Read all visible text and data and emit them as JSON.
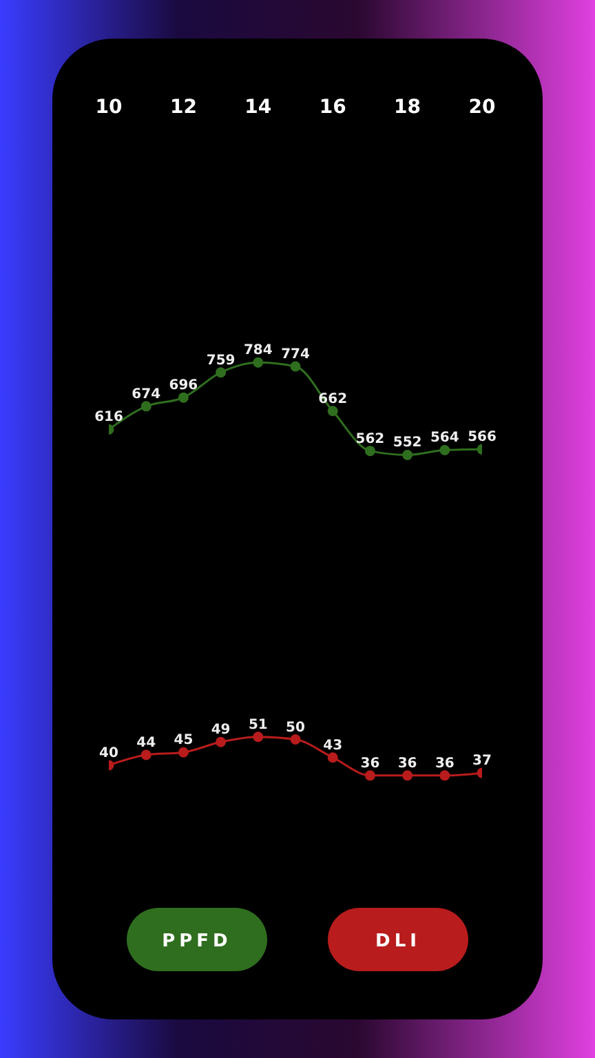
{
  "chart_data": [
    {
      "type": "line",
      "x": [
        10,
        11,
        12,
        13,
        14,
        15,
        16,
        17,
        18,
        19,
        20
      ],
      "xlim": [
        10,
        20
      ],
      "xticks": [
        10,
        12,
        14,
        16,
        18,
        20
      ],
      "tick_labels": "x",
      "data_labels": true,
      "marker": "circle",
      "legend": "bottom",
      "grid": false,
      "series": [
        {
          "name": "PPFD",
          "color": "#2f6e1e",
          "values": [
            616,
            674,
            696,
            759,
            784,
            774,
            662,
            562,
            552,
            564,
            566
          ]
        }
      ]
    },
    {
      "type": "line",
      "x": [
        10,
        11,
        12,
        13,
        14,
        15,
        16,
        17,
        18,
        19,
        20
      ],
      "xlim": [
        10,
        20
      ],
      "tick_labels": false,
      "data_labels": true,
      "marker": "circle",
      "legend": "bottom",
      "grid": false,
      "series": [
        {
          "name": "DLI",
          "color": "#b81c1c",
          "values": [
            40,
            44,
            45,
            49,
            51,
            50,
            43,
            36,
            36,
            36,
            37
          ]
        }
      ]
    }
  ]
}
